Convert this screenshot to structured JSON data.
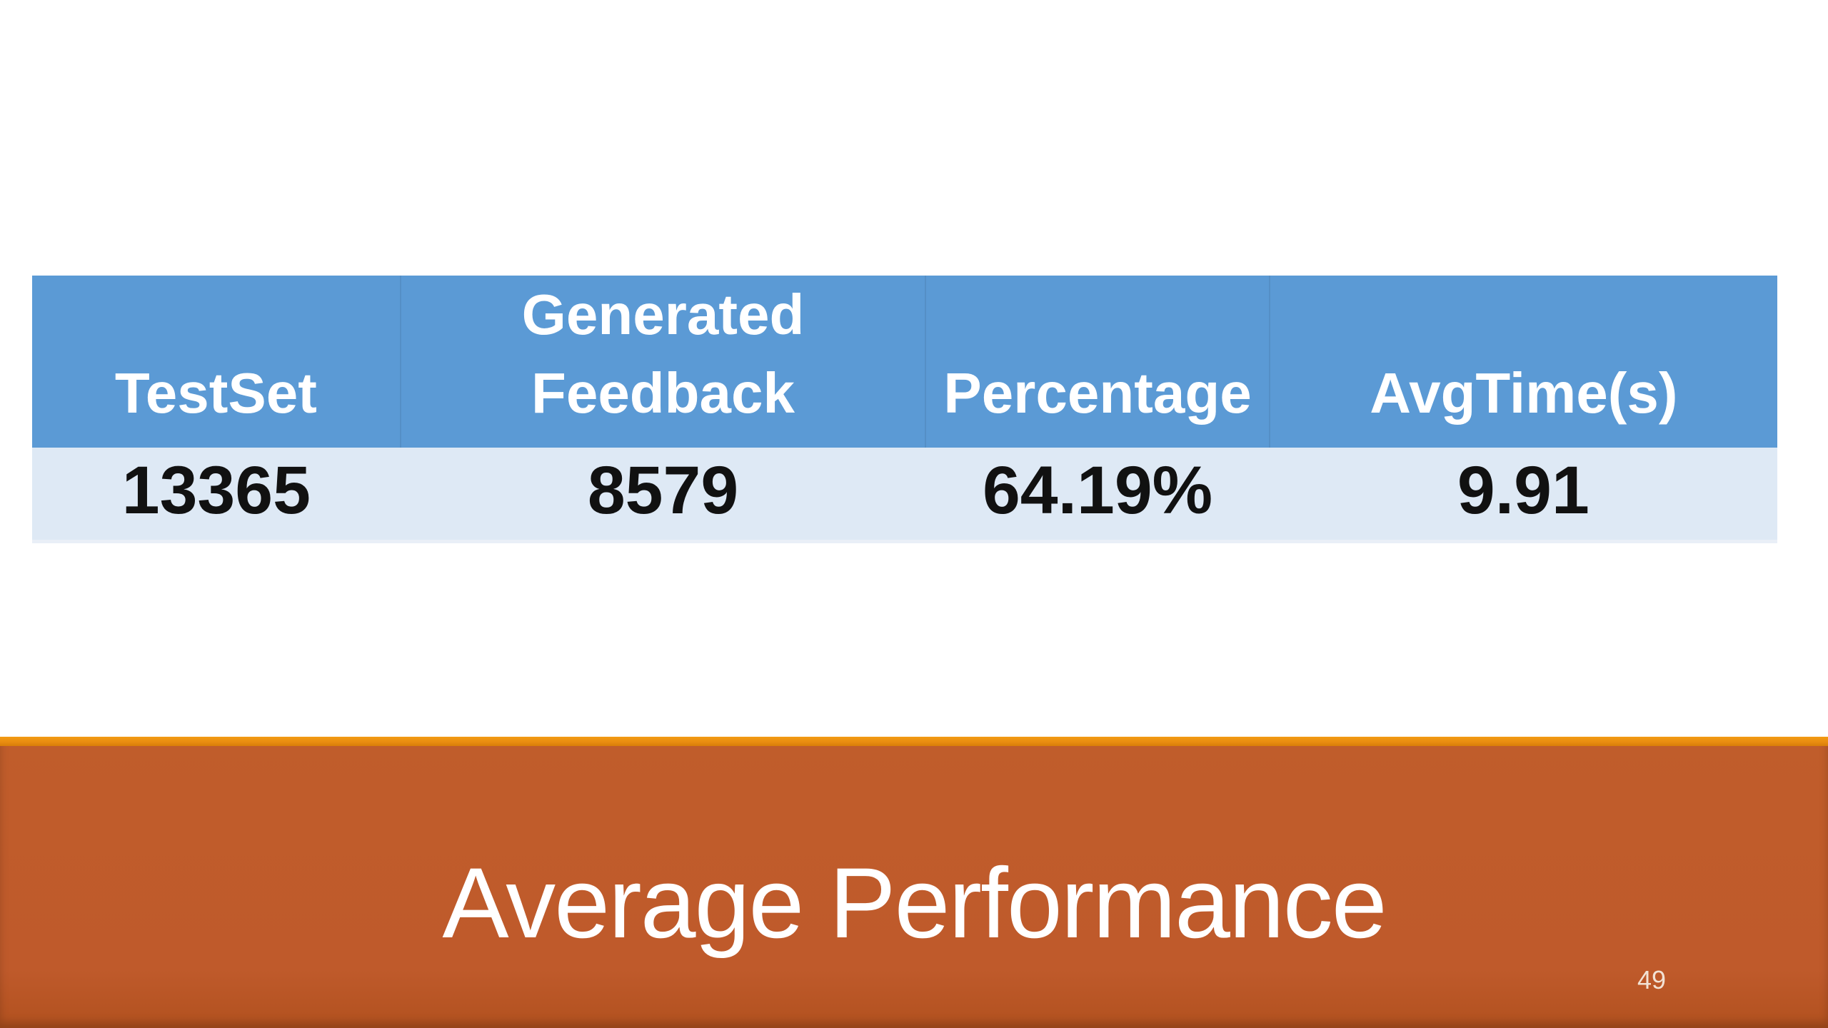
{
  "slide": {
    "title": "Average Performance",
    "page_number": "49"
  },
  "table": {
    "columns": [
      {
        "label": "TestSet"
      },
      {
        "label": "Generated Feedback"
      },
      {
        "label": "Percentage"
      },
      {
        "label": "AvgTime(s)"
      }
    ],
    "rows": [
      [
        "13365",
        "8579",
        "64.19%",
        "9.91"
      ]
    ]
  },
  "chart_data": {
    "type": "table",
    "title": "Average Performance",
    "columns": [
      "TestSet",
      "Generated Feedback",
      "Percentage",
      "AvgTime(s)"
    ],
    "rows": [
      [
        13365,
        8579,
        "64.19%",
        9.91
      ]
    ]
  },
  "colors": {
    "table_header_bg": "#5B9AD5",
    "table_row_bg": "#DEE9F5",
    "table_header_text": "#FFFFFF",
    "table_row_text": "#111111",
    "banner_body": "#BF5A2B",
    "banner_accent": "#E88B10",
    "title_text": "#FFFFFF",
    "page_number_text": "#F2E2D4"
  }
}
